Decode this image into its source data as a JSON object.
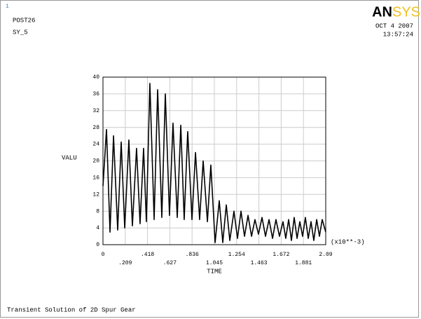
{
  "chart_data": {
    "type": "line",
    "window_number": "1",
    "plot_label": "POST26",
    "variable": "SY_5",
    "logo_left": "AN",
    "logo_right": "SYS",
    "date": "OCT  4 2007",
    "time": "13:57:24",
    "ylabel": "VALU",
    "xlabel": "TIME",
    "x_multiplier": "(x10**-3)",
    "title": "Transient Solution of 2D Spur Gear",
    "color": "#000000",
    "grid": true,
    "xlim": [
      0,
      2.09
    ],
    "ylim": [
      0,
      40
    ],
    "xticks": [
      0,
      {
        "value": 0.209,
        "label": ".209"
      },
      {
        "value": 0.418,
        "label": ".418"
      },
      {
        "value": 0.627,
        "label": ".627"
      },
      {
        "value": 0.836,
        "label": ".836"
      },
      1.045,
      1.254,
      1.463,
      1.672,
      1.881,
      2.09
    ],
    "yticks": [
      0,
      4,
      8,
      12,
      16,
      20,
      24,
      28,
      32,
      36,
      40
    ],
    "x": [
      0,
      0.033,
      0.066,
      0.099,
      0.138,
      0.171,
      0.204,
      0.243,
      0.276,
      0.315,
      0.348,
      0.381,
      0.407,
      0.44,
      0.48,
      0.513,
      0.552,
      0.585,
      0.624,
      0.657,
      0.697,
      0.73,
      0.762,
      0.795,
      0.835,
      0.868,
      0.907,
      0.94,
      0.98,
      1.012,
      1.052,
      1.091,
      1.124,
      1.157,
      1.19,
      1.229,
      1.262,
      1.295,
      1.328,
      1.361,
      1.394,
      1.426,
      1.459,
      1.492,
      1.525,
      1.558,
      1.591,
      1.623,
      1.656,
      1.689,
      1.715,
      1.742,
      1.768,
      1.794,
      1.821,
      1.847,
      1.873,
      1.899,
      1.926,
      1.952,
      1.978,
      2.005,
      2.031,
      2.057,
      2.09
    ],
    "values": [
      14,
      27.5,
      3,
      26,
      3.5,
      24.5,
      4,
      25,
      4.5,
      23,
      5,
      23,
      5.5,
      38.5,
      6,
      37,
      6.5,
      36,
      7,
      29,
      6.5,
      28.5,
      6,
      27,
      6,
      22,
      6,
      20,
      5.5,
      19,
      0.5,
      10.5,
      0.5,
      9.5,
      1,
      8,
      1.5,
      8,
      2,
      7,
      2,
      6,
      2.5,
      6.5,
      2,
      6,
      1.5,
      6,
      2,
      5.5,
      1.5,
      6,
      1,
      6.5,
      1.5,
      5.5,
      2,
      6.5,
      1.5,
      5.5,
      1,
      6,
      2,
      6,
      3
    ]
  }
}
